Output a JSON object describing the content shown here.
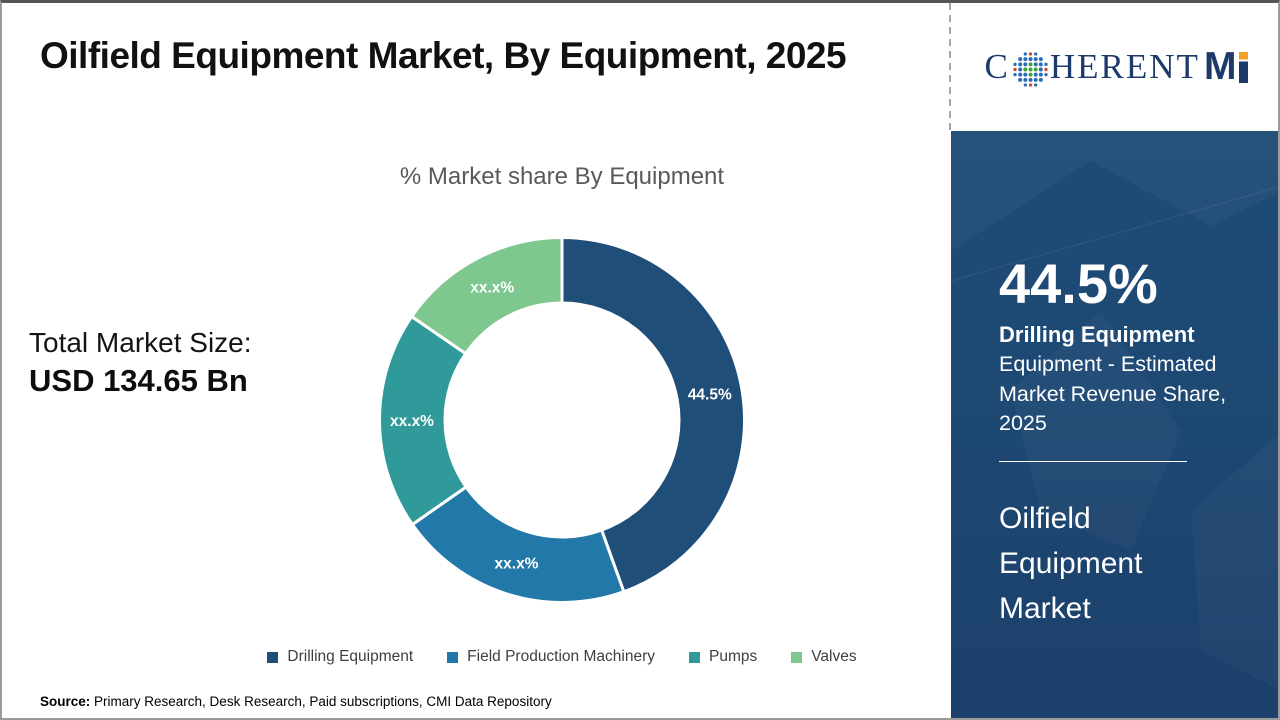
{
  "page": {
    "title": "Oilfield Equipment Market, By Equipment, 2025"
  },
  "logo": {
    "prefix": "C",
    "middle": "HERENT",
    "m": "M"
  },
  "total_market": {
    "label": "Total Market Size:",
    "value": "USD 134.65 Bn"
  },
  "chart_data": {
    "type": "pie",
    "subtype": "donut",
    "title": "% Market share By Equipment",
    "legend_position": "bottom",
    "start_angle_deg": 0,
    "direction": "clockwise",
    "segments": [
      {
        "name": "Drilling Equipment",
        "value": 44.5,
        "display_label": "44.5%",
        "color": "#1F4E79"
      },
      {
        "name": "Field Production Machinery",
        "value": 20.8,
        "display_label": "xx.x%",
        "color": "#2278A8"
      },
      {
        "name": "Pumps",
        "value": 19.3,
        "display_label": "xx.x%",
        "color": "#2F9A99"
      },
      {
        "name": "Valves",
        "value": 15.4,
        "display_label": "xx.x%",
        "color": "#7EC78F"
      }
    ]
  },
  "side_panel": {
    "stat_value": "44.5%",
    "stat_name": "Drilling Equipment",
    "stat_description": "Equipment - Estimated Market Revenue Share, 2025",
    "panel_title": "Oilfield Equipment Market",
    "background_color": "#1D4973"
  },
  "source": {
    "label": "Source:",
    "text": "Primary Research, Desk Research, Paid subscriptions, CMI Data Repository"
  }
}
